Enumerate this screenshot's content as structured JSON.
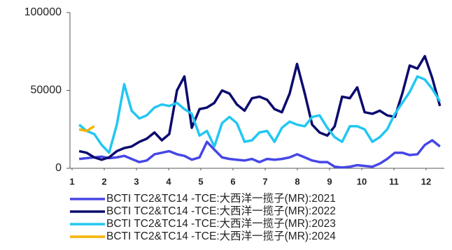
{
  "chart_data": {
    "type": "line",
    "x": [
      1.22,
      1.45,
      1.69,
      1.92,
      2.15,
      2.39,
      2.62,
      2.85,
      3.09,
      3.32,
      3.56,
      3.79,
      4.02,
      4.26,
      4.49,
      4.72,
      4.96,
      5.19,
      5.42,
      5.66,
      5.89,
      6.12,
      6.36,
      6.59,
      6.82,
      7.06,
      7.29,
      7.52,
      7.76,
      7.99,
      8.23,
      8.46,
      8.69,
      8.93,
      9.16,
      9.39,
      9.63,
      9.86,
      10.09,
      10.33,
      10.56,
      10.79,
      11.03,
      11.26,
      11.49,
      11.73,
      11.96,
      12.19,
      12.43
    ],
    "series": [
      {
        "name": "BCTI TC2&TC14 -TCE:大西洋一揽子(MR):2021",
        "color": "#4646e6",
        "values": [
          6000,
          6500,
          7000,
          7500,
          6500,
          7000,
          8000,
          6000,
          4000,
          5000,
          9000,
          10000,
          11000,
          9000,
          8000,
          5500,
          7000,
          17000,
          12000,
          7000,
          6000,
          5500,
          5000,
          6000,
          4000,
          6000,
          5500,
          6000,
          7000,
          9000,
          7000,
          5000,
          4000,
          4000,
          1000,
          500,
          1000,
          2000,
          1500,
          1000,
          3000,
          6000,
          10000,
          10000,
          8500,
          9000,
          15000,
          18000,
          14000
        ]
      },
      {
        "name": "BCTI TC2&TC14 -TCE:大西洋一揽子(MR):2022",
        "color": "#0a0a6e",
        "values": [
          11000,
          10000,
          7000,
          5500,
          7000,
          11000,
          13000,
          14000,
          17000,
          19000,
          23000,
          18000,
          22000,
          50000,
          59000,
          26000,
          38000,
          39000,
          42000,
          50000,
          48000,
          41000,
          37000,
          45000,
          46000,
          44000,
          38000,
          36000,
          48000,
          67000,
          48000,
          28000,
          23000,
          21000,
          27000,
          46000,
          45000,
          52000,
          36000,
          35000,
          37000,
          34000,
          33000,
          48000,
          66000,
          64000,
          72000,
          58000,
          40000
        ]
      },
      {
        "name": "BCTI TC2&TC14 -TCE:大西洋一揽子(MR):2023",
        "color": "#22c7f2",
        "values": [
          28000,
          24000,
          22000,
          15000,
          10000,
          28000,
          54000,
          37000,
          32000,
          34000,
          39000,
          41000,
          40000,
          42000,
          38000,
          35000,
          21000,
          24000,
          14000,
          29000,
          33000,
          29000,
          17000,
          18000,
          23000,
          24000,
          17000,
          26000,
          30000,
          28000,
          27000,
          33000,
          34000,
          26000,
          20000,
          17000,
          27000,
          27000,
          25000,
          17000,
          20000,
          25000,
          35000,
          42000,
          49000,
          59000,
          57000,
          51000,
          43000
        ]
      },
      {
        "name": "BCTI TC2&TC14 -TCE:大西洋一揽子(MR):2024",
        "color": "#f5b400",
        "values": [
          25000,
          24000,
          27000,
          null,
          null,
          null,
          null,
          null,
          null,
          null,
          null,
          null,
          null,
          null,
          null,
          null,
          null,
          null,
          null,
          null,
          null,
          null,
          null,
          null,
          null,
          null,
          null,
          null,
          null,
          null,
          null,
          null,
          null,
          null,
          null,
          null,
          null,
          null,
          null,
          null,
          null,
          null,
          null,
          null,
          null,
          null,
          null,
          null,
          null
        ]
      }
    ],
    "xlim": [
      1,
      12.6
    ],
    "xticks": [
      1,
      2,
      3,
      4,
      5,
      6,
      7,
      8,
      9,
      10,
      11,
      12
    ],
    "ylim": [
      0,
      100000
    ],
    "yticks": [
      0,
      50000,
      100000
    ],
    "grid": false,
    "legend": "bottom"
  }
}
